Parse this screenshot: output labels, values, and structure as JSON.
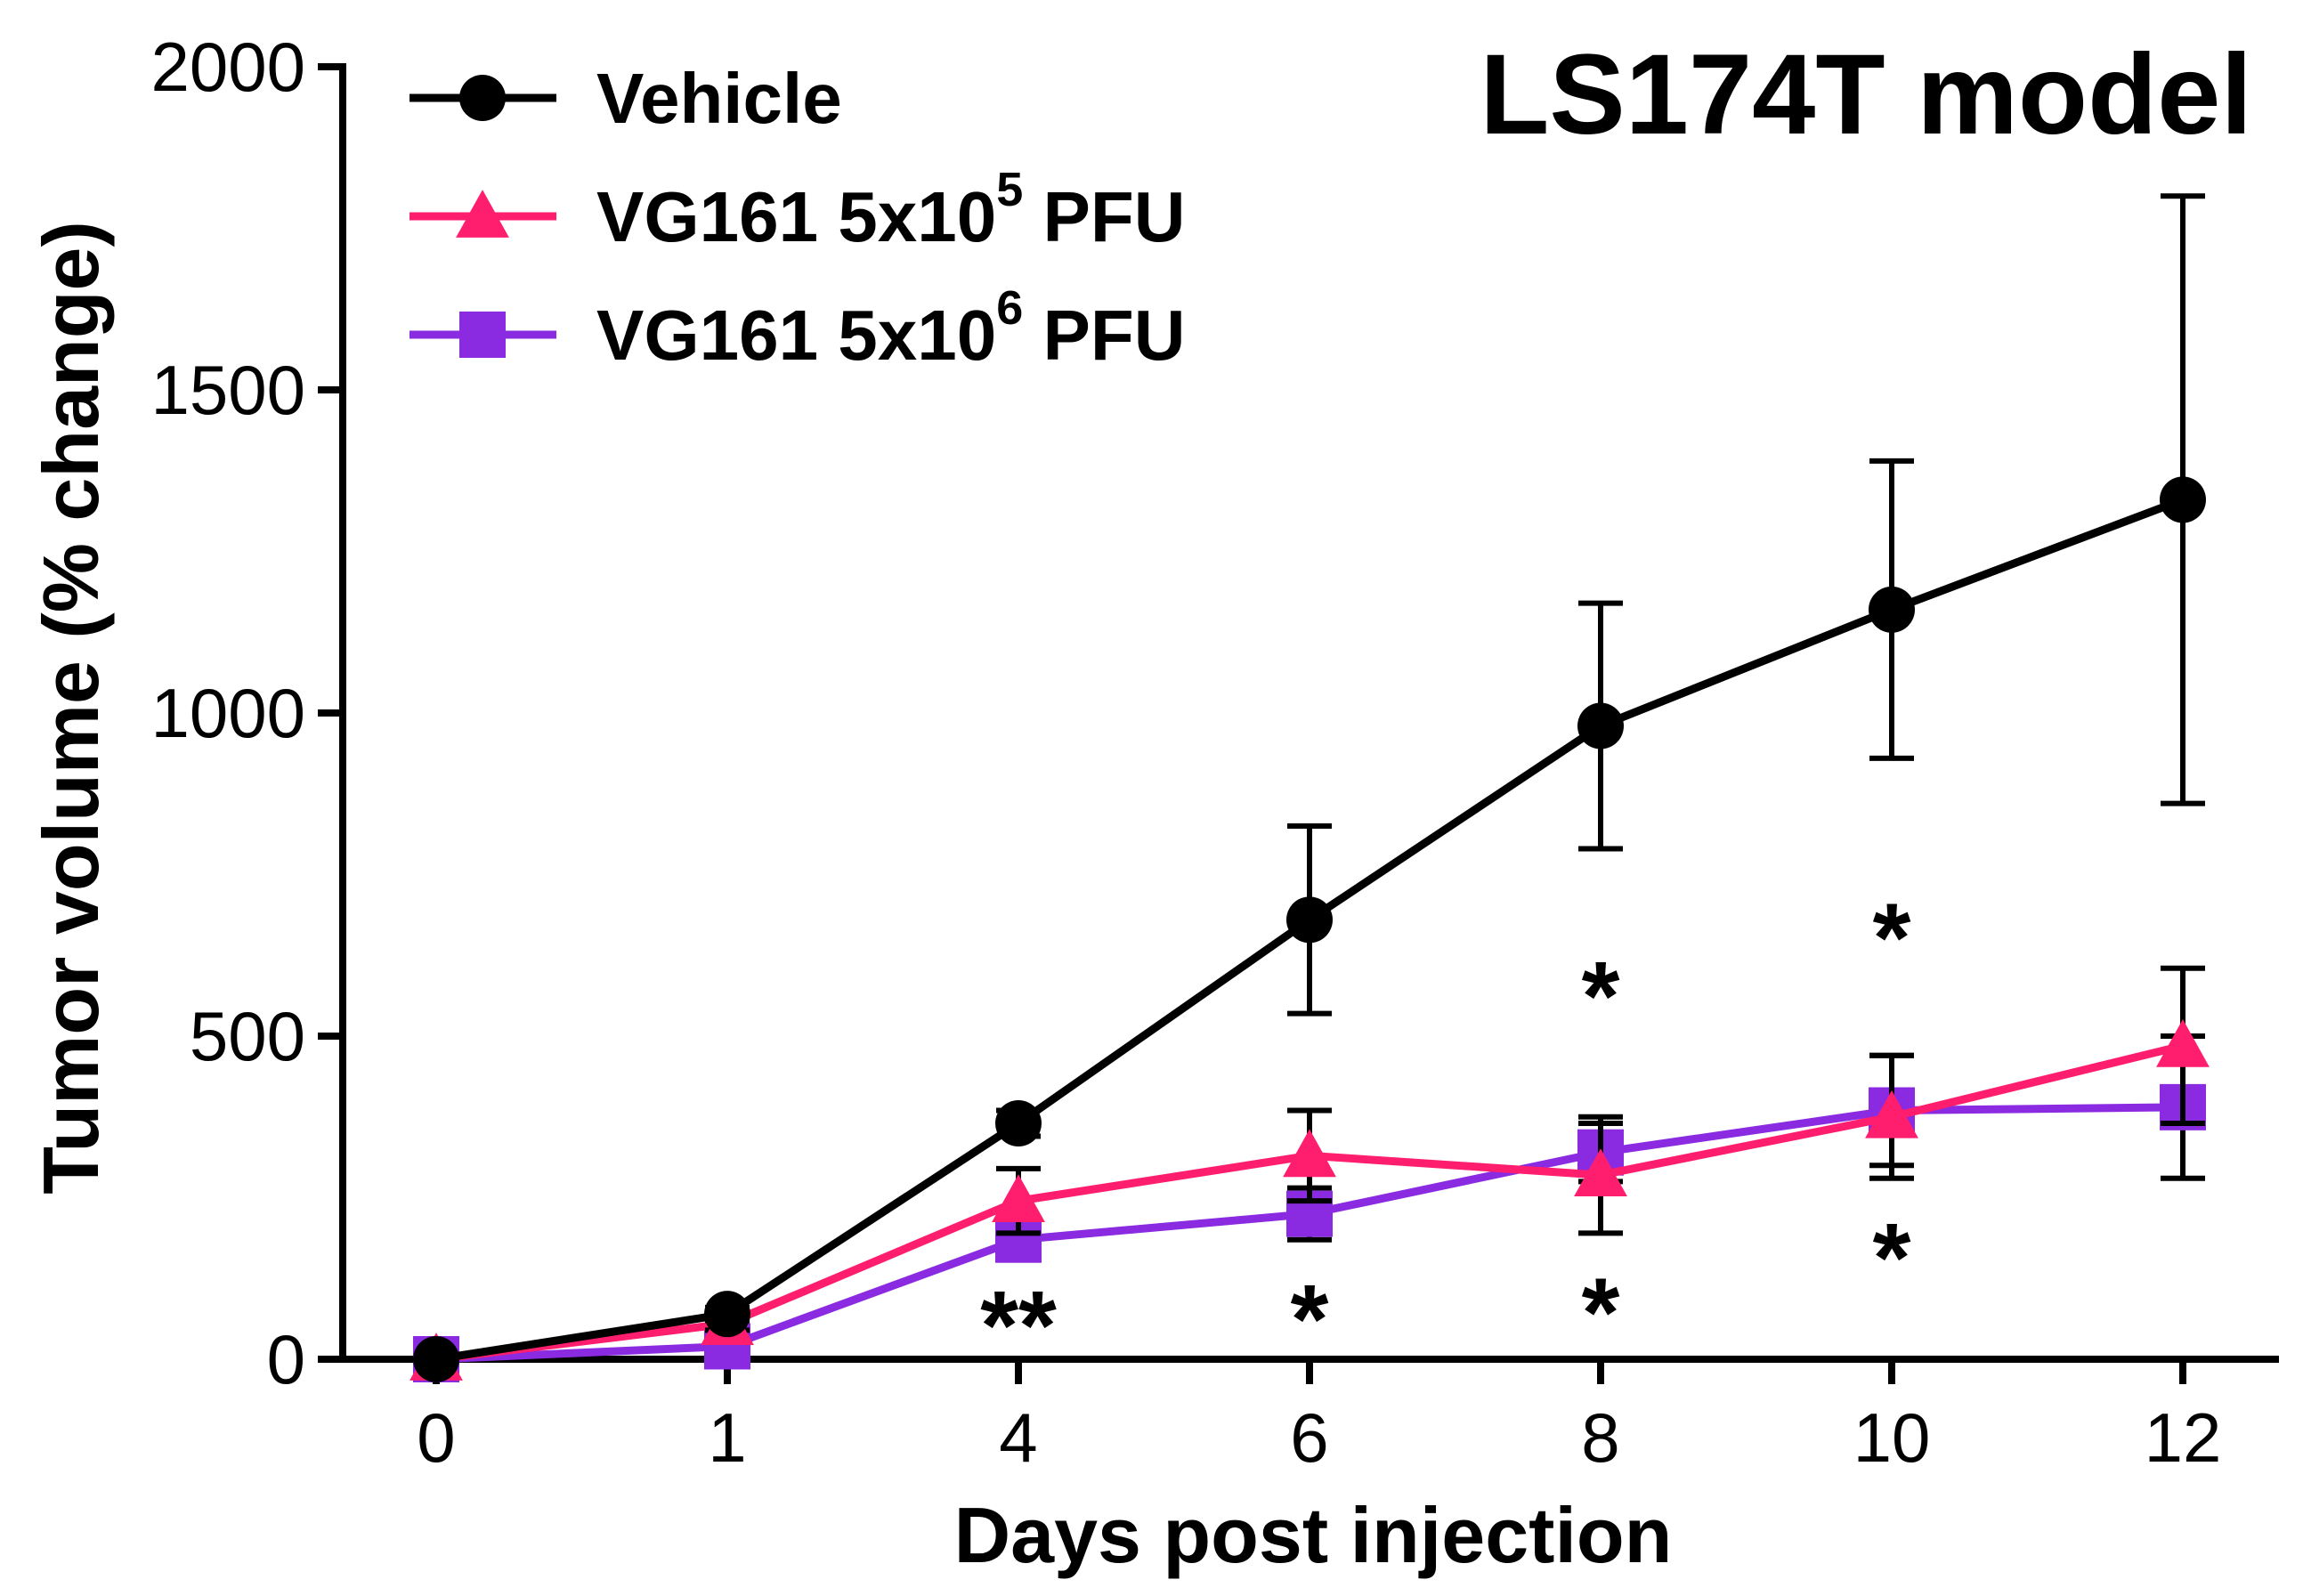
{
  "chart_data": {
    "type": "line",
    "title": "LS174T model",
    "xlabel": "Days post injection",
    "ylabel": "Tumor volume (% change)",
    "x": [
      0,
      1,
      4,
      6,
      8,
      10,
      12
    ],
    "x_tick_labels": [
      "0",
      "1",
      "4",
      "6",
      "8",
      "10",
      "12"
    ],
    "ylim": [
      0,
      2000
    ],
    "y_ticks": [
      0,
      500,
      1000,
      1500,
      2000
    ],
    "y_tick_labels": [
      "0",
      "500",
      "1000",
      "1500",
      "2000"
    ],
    "grid": false,
    "legend_position": "top-left",
    "series": [
      {
        "name": "Vehicle",
        "legend_main": "Vehicle",
        "legend_sup": "",
        "legend_tail": "",
        "color": "#000000",
        "marker": "circle",
        "values": [
          0,
          70,
          365,
          680,
          980,
          1160,
          1330
        ],
        "error": [
          0,
          10,
          20,
          145,
          190,
          230,
          470
        ]
      },
      {
        "name": "VG161 5x10^5 PFU",
        "legend_main": "VG161 5x10",
        "legend_sup": "5",
        "legend_tail": " PFU",
        "color": "#ff1e6e",
        "marker": "triangle",
        "values": [
          0,
          55,
          245,
          315,
          285,
          375,
          485
        ],
        "error": [
          0,
          10,
          50,
          70,
          90,
          95,
          120
        ]
      },
      {
        "name": "VG161 5x10^6 PFU",
        "legend_main": "VG161 5x10",
        "legend_sup": "6",
        "legend_tail": " PFU",
        "color": "#8a2be2",
        "marker": "square",
        "values": [
          0,
          20,
          185,
          225,
          320,
          385,
          390
        ],
        "error": [
          0,
          5,
          30,
          40,
          45,
          85,
          110
        ]
      }
    ],
    "annotations": [
      {
        "text": "**",
        "x": 4,
        "y": 55
      },
      {
        "text": "*",
        "x": 6,
        "y": 65
      },
      {
        "text": "*",
        "x": 8,
        "y": 565
      },
      {
        "text": "*",
        "x": 8,
        "y": 75
      },
      {
        "text": "*",
        "x": 10,
        "y": 655
      },
      {
        "text": "*",
        "x": 10,
        "y": 160
      }
    ]
  }
}
